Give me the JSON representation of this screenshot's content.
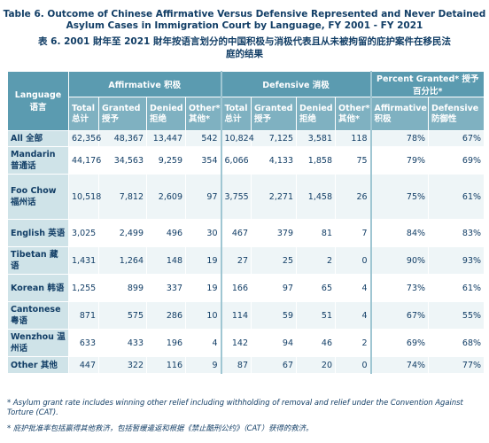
{
  "title_en": "Table 6. Outcome of Chinese Affirmative Versus Defensive Represented and Never Detained Asylum Cases in Immigration Court by Language, FY 2001 - FY 2021",
  "title_zh": "表 6. 2001 財年至 2021 財年按语言划分的中国积极与消极代表且从未被拘留的庇护案件在移民法庭的结果",
  "header": {
    "language": "Language 语言",
    "affirmative": "Affirmative 积极",
    "defensive": "Defensive 消极",
    "percent_granted": "Percent Granted* 授予百分比*"
  },
  "subheader": [
    "Total 总计",
    "Granted 授予",
    "Denied 拒绝",
    "Other* 其他*",
    "Total 总计",
    "Granted 授予",
    "Denied 拒绝",
    "Other* 其他*",
    "Affirmative 积极",
    "Defensive 防御性"
  ],
  "rows": [
    {
      "label": "All 全部",
      "values": [
        "62,356",
        "48,367",
        "13,447",
        "542",
        "10,824",
        "7,125",
        "3,581",
        "118",
        "78%",
        "67%"
      ]
    },
    {
      "label": "Mandarin 普通话",
      "values": [
        "44,176",
        "34,563",
        "9,259",
        "354",
        "6,066",
        "4,133",
        "1,858",
        "75",
        "79%",
        "69%"
      ]
    },
    {
      "label": "Foo Chow 福州话",
      "values": [
        "10,518",
        "7,812",
        "2,609",
        "97",
        "3,755",
        "2,271",
        "1,458",
        "26",
        "75%",
        "61%"
      ]
    },
    {
      "label": "English 英语",
      "values": [
        "3,025",
        "2,499",
        "496",
        "30",
        "467",
        "379",
        "81",
        "7",
        "84%",
        "83%"
      ]
    },
    {
      "label": "Tibetan 藏语",
      "values": [
        "1,431",
        "1,264",
        "148",
        "19",
        "27",
        "25",
        "2",
        "0",
        "90%",
        "93%"
      ]
    },
    {
      "label": "Korean 韩语",
      "values": [
        "1,255",
        "899",
        "337",
        "19",
        "166",
        "97",
        "65",
        "4",
        "73%",
        "61%"
      ]
    },
    {
      "label": "Cantonese 粤语",
      "values": [
        "871",
        "575",
        "286",
        "10",
        "114",
        "59",
        "51",
        "4",
        "67%",
        "55%"
      ]
    },
    {
      "label": "Wenzhou 温州话",
      "values": [
        "633",
        "433",
        "196",
        "4",
        "142",
        "94",
        "46",
        "2",
        "69%",
        "68%"
      ]
    },
    {
      "label": "Other 其他",
      "values": [
        "447",
        "322",
        "116",
        "9",
        "87",
        "67",
        "20",
        "0",
        "74%",
        "77%"
      ]
    }
  ],
  "footnote_en": "* Asylum grant rate includes winning other relief including withholding of removal and relief under the Convention Against Torture (CAT).",
  "footnote_zh": "* 庇护批准率包括赢得其他救济，包括暂缓遣返和根据《禁止酷刑公约》（CAT）获得的救济。"
}
